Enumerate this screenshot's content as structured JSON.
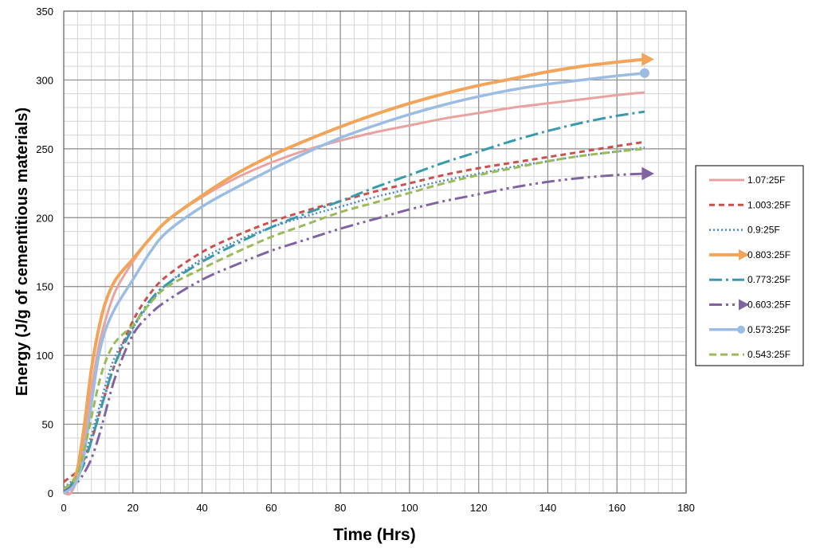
{
  "chart_data": {
    "type": "line",
    "title": "",
    "xlabel": "Time (Hrs)",
    "ylabel": "Energy (J/g of cementitious materials)",
    "xlim": [
      0,
      180
    ],
    "ylim": [
      0,
      350
    ],
    "xticks": [
      0,
      20,
      40,
      60,
      80,
      100,
      120,
      140,
      160,
      180
    ],
    "yticks": [
      0,
      50,
      100,
      150,
      200,
      250,
      300,
      350
    ],
    "x_minor_step": 4,
    "y_minor_step": 10,
    "grid": true,
    "legend_position": "right",
    "x": [
      0,
      2,
      4,
      6,
      8,
      10,
      12,
      15,
      20,
      25,
      30,
      40,
      50,
      60,
      70,
      80,
      90,
      100,
      110,
      120,
      130,
      140,
      150,
      160,
      168
    ],
    "series": [
      {
        "name": "1.07:25F",
        "color": "#e8a3a1",
        "dash": "",
        "width": 3,
        "marker": "none",
        "values": [
          0,
          0,
          12,
          40,
          75,
          105,
          125,
          147,
          168,
          185,
          198,
          215,
          229,
          240,
          249,
          256,
          262,
          267,
          272,
          276,
          280,
          283,
          286,
          289,
          291
        ]
      },
      {
        "name": "1.003:25F",
        "color": "#c9504e",
        "dash": "7,5",
        "width": 3,
        "marker": "none",
        "values": [
          8,
          12,
          16,
          25,
          38,
          55,
          72,
          95,
          125,
          145,
          158,
          175,
          187,
          197,
          205,
          212,
          219,
          225,
          231,
          236,
          240,
          244,
          248,
          252,
          255
        ]
      },
      {
        "name": "0.9:25F",
        "color": "#4a86c8",
        "dash": "2,3",
        "width": 2.5,
        "marker": "none",
        "values": [
          4,
          8,
          14,
          28,
          42,
          60,
          78,
          100,
          120,
          138,
          152,
          170,
          183,
          193,
          201,
          208,
          215,
          221,
          227,
          232,
          237,
          241,
          245,
          248,
          251
        ]
      },
      {
        "name": "0.803:25F",
        "color": "#f2a55a",
        "dash": "",
        "width": 4,
        "marker": "arrow",
        "values": [
          0,
          5,
          18,
          50,
          90,
          118,
          138,
          155,
          170,
          185,
          198,
          216,
          232,
          245,
          256,
          266,
          275,
          283,
          290,
          296,
          301,
          306,
          310,
          313,
          315
        ]
      },
      {
        "name": "0.773:25F",
        "color": "#3a9aab",
        "dash": "16,5,3,5",
        "width": 3,
        "marker": "none",
        "values": [
          2,
          6,
          12,
          22,
          38,
          55,
          72,
          95,
          120,
          140,
          152,
          168,
          181,
          193,
          203,
          212,
          222,
          231,
          240,
          248,
          256,
          263,
          269,
          274,
          277
        ]
      },
      {
        "name": "0.603:25F",
        "color": "#8064a2",
        "dash": "16,5,3,5,3,5",
        "width": 3,
        "marker": "arrow",
        "values": [
          1,
          4,
          8,
          15,
          25,
          40,
          58,
          85,
          115,
          130,
          140,
          155,
          166,
          176,
          184,
          192,
          199,
          206,
          212,
          217,
          222,
          226,
          229,
          231,
          232
        ]
      },
      {
        "name": "0.573:25F",
        "color": "#9bbde3",
        "dash": "",
        "width": 3.5,
        "marker": "circle",
        "values": [
          0,
          3,
          10,
          30,
          65,
          98,
          118,
          135,
          155,
          175,
          190,
          208,
          222,
          235,
          247,
          258,
          267,
          275,
          282,
          288,
          293,
          297,
          300,
          303,
          305
        ]
      },
      {
        "name": "0.543:25F",
        "color": "#9bbb59",
        "dash": "9,5",
        "width": 3,
        "marker": "none",
        "values": [
          3,
          7,
          14,
          32,
          55,
          78,
          95,
          110,
          122,
          138,
          150,
          163,
          175,
          186,
          195,
          204,
          211,
          218,
          225,
          231,
          236,
          241,
          245,
          248,
          250
        ]
      }
    ]
  }
}
